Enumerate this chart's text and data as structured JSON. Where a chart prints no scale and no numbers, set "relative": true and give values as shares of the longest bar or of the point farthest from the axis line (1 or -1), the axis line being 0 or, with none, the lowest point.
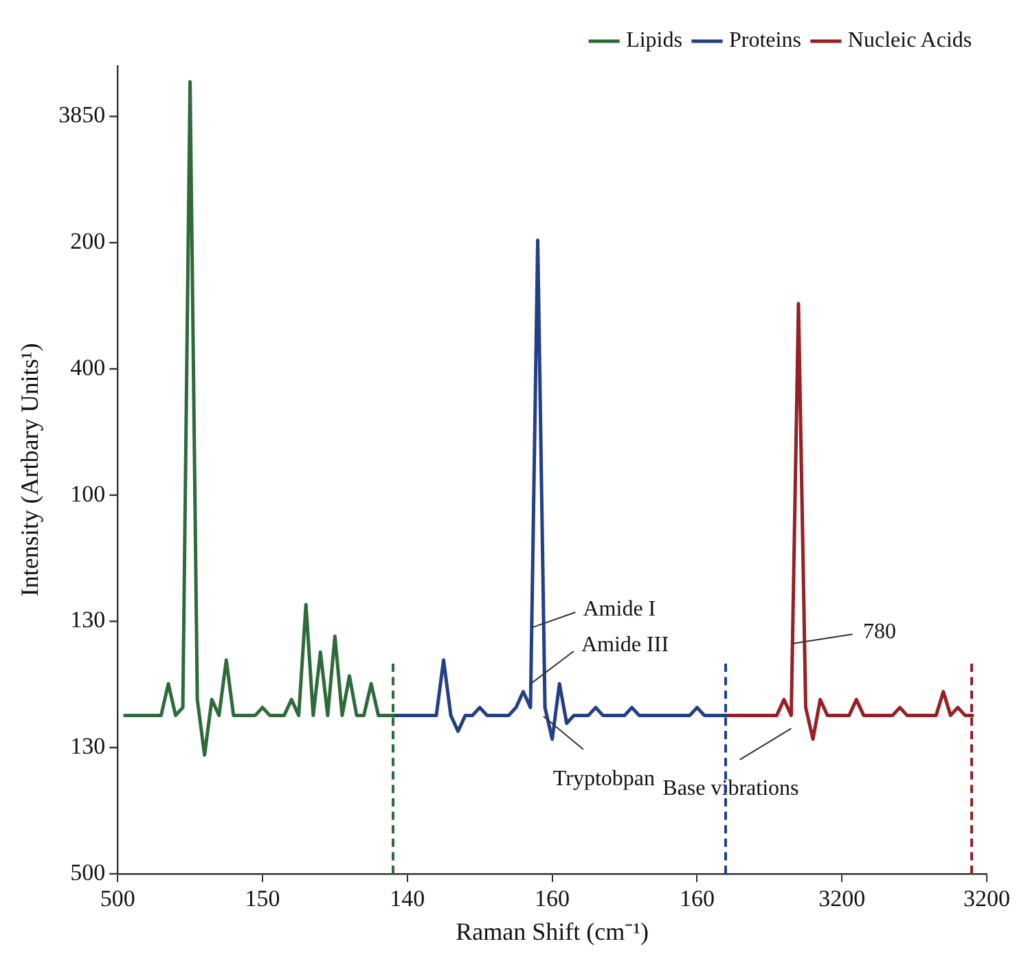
{
  "chart_data": {
    "type": "line",
    "xlabel": "Raman Shift (cm⁻¹)",
    "ylabel": "Intensity (Artbary Units¹)",
    "relative": true,
    "categories": [
      "500",
      null,
      null,
      null,
      null,
      null,
      null,
      null,
      null,
      null,
      null,
      null,
      null,
      null,
      null,
      null,
      null,
      null,
      null,
      null,
      "150",
      null,
      null,
      null,
      null,
      null,
      null,
      null,
      null,
      null,
      null,
      null,
      null,
      null,
      null,
      null,
      null,
      null,
      null,
      null,
      "140",
      null,
      null,
      null,
      null,
      null,
      null,
      null,
      null,
      null,
      null,
      null,
      null,
      null,
      null,
      null,
      null,
      null,
      null,
      null,
      "160",
      null,
      null,
      null,
      null,
      null,
      null,
      null,
      null,
      null,
      null,
      null,
      null,
      null,
      null,
      null,
      null,
      null,
      null,
      null,
      "160",
      null,
      null,
      null,
      null,
      null,
      null,
      null,
      null,
      null,
      null,
      null,
      null,
      null,
      null,
      null,
      null,
      null,
      null,
      null,
      "3200",
      null,
      null,
      null,
      null,
      null,
      null,
      null,
      null,
      null,
      null,
      null,
      null,
      null,
      null,
      null,
      null,
      null,
      null,
      null,
      "3200"
    ],
    "grid": false,
    "legend": "top right",
    "marker": "none",
    "line_style": "solid",
    "series": [
      {
        "name": "Lipids",
        "color": "#2e6b3a",
        "values": [
          null,
          0.2,
          0.2,
          0.2,
          0.2,
          0.2,
          0.2,
          0.24,
          0.2,
          0.21,
          1,
          0.22,
          0.15,
          0.22,
          0.2,
          0.27,
          0.2,
          0.2,
          0.2,
          0.2,
          0.21,
          0.2,
          0.2,
          0.2,
          0.22,
          0.2,
          0.34,
          0.2,
          0.28,
          0.2,
          0.3,
          0.2,
          0.25,
          0.2,
          0.2,
          0.24,
          0.2,
          0.2,
          0.2,
          null,
          null,
          null,
          null,
          null,
          null,
          null,
          null,
          null,
          null,
          null,
          null,
          null,
          null,
          null,
          null,
          null,
          null,
          null,
          null,
          null,
          null,
          null,
          null,
          null,
          null,
          null,
          null,
          null,
          null,
          null,
          null,
          null,
          null,
          null,
          null,
          null,
          null,
          null,
          null,
          null,
          null,
          null,
          null,
          null,
          null,
          null,
          null,
          null,
          null,
          null,
          null,
          null,
          null,
          null,
          null,
          null,
          null,
          null,
          null,
          null,
          null,
          null,
          null,
          null,
          null,
          null,
          null,
          null,
          null,
          null,
          null,
          null,
          null,
          null,
          null,
          null,
          null,
          null,
          null,
          null,
          null
        ]
      },
      {
        "name": "Proteins",
        "color": "#233f86",
        "values": [
          null,
          null,
          null,
          null,
          null,
          null,
          null,
          null,
          null,
          null,
          null,
          null,
          null,
          null,
          null,
          null,
          null,
          null,
          null,
          null,
          null,
          null,
          null,
          null,
          null,
          null,
          null,
          null,
          null,
          null,
          null,
          null,
          null,
          null,
          null,
          null,
          null,
          null,
          0.2,
          0.2,
          0.2,
          0.2,
          0.2,
          0.2,
          0.2,
          0.27,
          0.2,
          0.18,
          0.2,
          0.2,
          0.21,
          0.2,
          0.2,
          0.2,
          0.2,
          0.21,
          0.23,
          0.21,
          0.8,
          0.21,
          0.17,
          0.24,
          0.19,
          0.2,
          0.2,
          0.2,
          0.21,
          0.2,
          0.2,
          0.2,
          0.2,
          0.21,
          0.2,
          0.2,
          0.2,
          0.2,
          0.2,
          0.2,
          0.2,
          0.2,
          0.21,
          0.2,
          0.2,
          0.2,
          0.2,
          null,
          null,
          null,
          null,
          null,
          null,
          null,
          null,
          null,
          null,
          null,
          null,
          null,
          null,
          null,
          null,
          null,
          null,
          null,
          null,
          null,
          null,
          null,
          null,
          null,
          null,
          null,
          null,
          null,
          null,
          null,
          null,
          null,
          null,
          null,
          null
        ]
      },
      {
        "name": "Nucleic Acids",
        "color": "#962026",
        "values": [
          null,
          null,
          null,
          null,
          null,
          null,
          null,
          null,
          null,
          null,
          null,
          null,
          null,
          null,
          null,
          null,
          null,
          null,
          null,
          null,
          null,
          null,
          null,
          null,
          null,
          null,
          null,
          null,
          null,
          null,
          null,
          null,
          null,
          null,
          null,
          null,
          null,
          null,
          null,
          null,
          null,
          null,
          null,
          null,
          null,
          null,
          null,
          null,
          null,
          null,
          null,
          null,
          null,
          null,
          null,
          null,
          null,
          null,
          null,
          null,
          null,
          null,
          null,
          null,
          null,
          null,
          null,
          null,
          null,
          null,
          null,
          null,
          null,
          null,
          null,
          null,
          null,
          null,
          null,
          null,
          null,
          null,
          null,
          null,
          0.2,
          0.2,
          0.2,
          0.2,
          0.2,
          0.2,
          0.2,
          0.2,
          0.22,
          0.2,
          0.72,
          0.21,
          0.17,
          0.22,
          0.2,
          0.2,
          0.2,
          0.2,
          0.22,
          0.2,
          0.2,
          0.2,
          0.2,
          0.2,
          0.21,
          0.2,
          0.2,
          0.2,
          0.2,
          0.2,
          0.23,
          0.2,
          0.21,
          0.2,
          0.2,
          null,
          null
        ]
      }
    ],
    "annotations": [
      "3850",
      "200",
      "400",
      "100",
      "130",
      "130",
      "500",
      "Amide I",
      "Amide III",
      "Tryptobpan",
      "780",
      "Base vibrations"
    ]
  }
}
